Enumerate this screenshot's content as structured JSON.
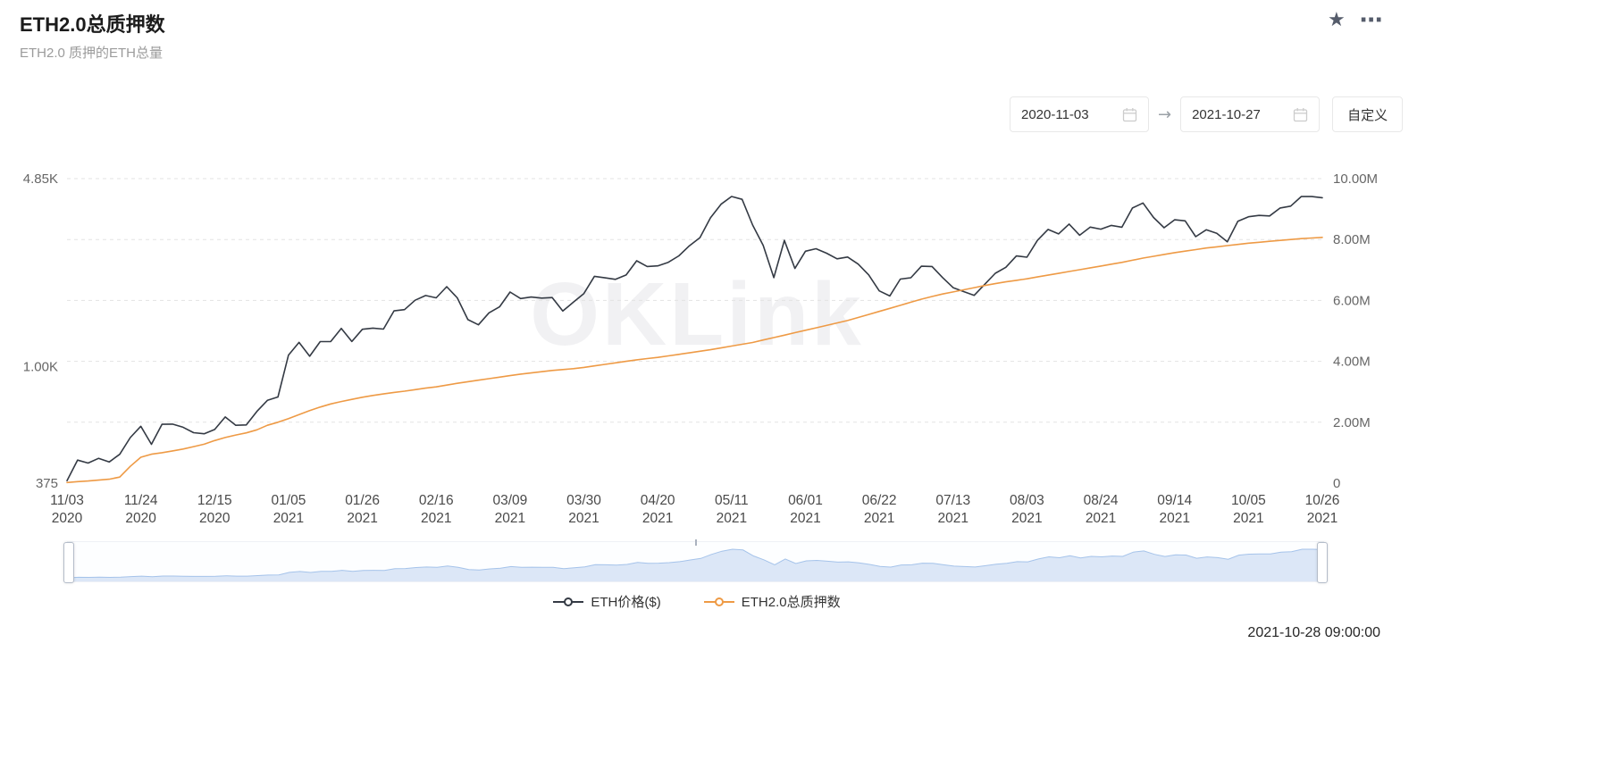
{
  "header": {
    "title": "ETH2.0总质押数",
    "subtitle": "ETH2.0 质押的ETH总量"
  },
  "icons": {
    "star": "★",
    "ellipsis": "⋯"
  },
  "controls": {
    "start_date": "2020-11-03",
    "end_date": "2021-10-27",
    "arrow": "→",
    "custom_label": "自定义"
  },
  "watermark": "OKLink",
  "footer": {
    "timestamp": "2021-10-28 09:00:00"
  },
  "chart_data": {
    "type": "line",
    "title": "ETH2.0总质押数",
    "legend_position": "bottom",
    "grid": "horizontal dashed",
    "x_axis": {
      "tick_every": 7,
      "tick_labels": [
        [
          "11/03",
          "2020"
        ],
        [
          "11/24",
          "2020"
        ],
        [
          "12/15",
          "2020"
        ],
        [
          "01/05",
          "2021"
        ],
        [
          "01/26",
          "2021"
        ],
        [
          "02/16",
          "2021"
        ],
        [
          "03/09",
          "2021"
        ],
        [
          "03/30",
          "2021"
        ],
        [
          "04/20",
          "2021"
        ],
        [
          "05/11",
          "2021"
        ],
        [
          "06/01",
          "2021"
        ],
        [
          "06/22",
          "2021"
        ],
        [
          "07/13",
          "2021"
        ],
        [
          "08/03",
          "2021"
        ],
        [
          "08/24",
          "2021"
        ],
        [
          "09/14",
          "2021"
        ],
        [
          "10/05",
          "2021"
        ],
        [
          "10/26",
          "2021"
        ]
      ]
    },
    "y_left": {
      "scale": "log",
      "min": 375,
      "max": 4850,
      "ticks": [
        {
          "value": 4850,
          "label": "4.85K"
        },
        {
          "value": 1000,
          "label": "1.00K"
        },
        {
          "value": 375,
          "label": "375"
        }
      ]
    },
    "y_right": {
      "scale": "linear",
      "min": 0,
      "max": 10,
      "values_in": "millions of ETH",
      "ticks": [
        {
          "value": 10,
          "label": "10.00M"
        },
        {
          "value": 8,
          "label": "8.00M"
        },
        {
          "value": 6,
          "label": "6.00M"
        },
        {
          "value": 4,
          "label": "4.00M"
        },
        {
          "value": 2,
          "label": "2.00M"
        },
        {
          "value": 0,
          "label": "0"
        }
      ]
    },
    "dates": [
      "2020-11-03",
      "2020-11-06",
      "2020-11-09",
      "2020-11-12",
      "2020-11-15",
      "2020-11-18",
      "2020-11-21",
      "2020-11-24",
      "2020-11-27",
      "2020-11-30",
      "2020-12-03",
      "2020-12-06",
      "2020-12-09",
      "2020-12-12",
      "2020-12-15",
      "2020-12-18",
      "2020-12-21",
      "2020-12-24",
      "2020-12-27",
      "2020-12-30",
      "2021-01-02",
      "2021-01-05",
      "2021-01-08",
      "2021-01-11",
      "2021-01-14",
      "2021-01-17",
      "2021-01-20",
      "2021-01-23",
      "2021-01-26",
      "2021-01-29",
      "2021-02-01",
      "2021-02-04",
      "2021-02-07",
      "2021-02-10",
      "2021-02-13",
      "2021-02-16",
      "2021-02-19",
      "2021-02-22",
      "2021-02-25",
      "2021-02-28",
      "2021-03-03",
      "2021-03-06",
      "2021-03-09",
      "2021-03-12",
      "2021-03-15",
      "2021-03-18",
      "2021-03-21",
      "2021-03-24",
      "2021-03-27",
      "2021-03-30",
      "2021-04-02",
      "2021-04-05",
      "2021-04-08",
      "2021-04-11",
      "2021-04-14",
      "2021-04-17",
      "2021-04-20",
      "2021-04-23",
      "2021-04-26",
      "2021-04-29",
      "2021-05-02",
      "2021-05-05",
      "2021-05-08",
      "2021-05-11",
      "2021-05-14",
      "2021-05-17",
      "2021-05-20",
      "2021-05-23",
      "2021-05-26",
      "2021-05-29",
      "2021-06-01",
      "2021-06-04",
      "2021-06-07",
      "2021-06-10",
      "2021-06-13",
      "2021-06-16",
      "2021-06-19",
      "2021-06-22",
      "2021-06-25",
      "2021-06-28",
      "2021-07-01",
      "2021-07-04",
      "2021-07-07",
      "2021-07-10",
      "2021-07-13",
      "2021-07-16",
      "2021-07-19",
      "2021-07-22",
      "2021-07-25",
      "2021-07-28",
      "2021-07-31",
      "2021-08-03",
      "2021-08-06",
      "2021-08-09",
      "2021-08-12",
      "2021-08-15",
      "2021-08-18",
      "2021-08-21",
      "2021-08-24",
      "2021-08-27",
      "2021-08-30",
      "2021-09-02",
      "2021-09-05",
      "2021-09-08",
      "2021-09-11",
      "2021-09-14",
      "2021-09-17",
      "2021-09-20",
      "2021-09-23",
      "2021-09-26",
      "2021-09-29",
      "2021-10-02",
      "2021-10-05",
      "2021-10-08",
      "2021-10-11",
      "2021-10-14",
      "2021-10-17",
      "2021-10-20",
      "2021-10-23",
      "2021-10-26"
    ],
    "series": [
      {
        "name": "ETH价格($)",
        "yaxis": "left",
        "color": "#343a44",
        "values": [
          383,
          455,
          444,
          462,
          448,
          478,
          550,
          605,
          520,
          615,
          616,
          600,
          573,
          568,
          589,
          654,
          610,
          612,
          685,
          752,
          774,
          1100,
          1224,
          1090,
          1232,
          1233,
          1377,
          1233,
          1367,
          1380,
          1369,
          1595,
          1612,
          1745,
          1816,
          1781,
          1956,
          1781,
          1482,
          1419,
          1570,
          1651,
          1870,
          1770,
          1792,
          1776,
          1784,
          1593,
          1716,
          1846,
          2133,
          2107,
          2080,
          2157,
          2432,
          2317,
          2330,
          2400,
          2533,
          2757,
          2952,
          3489,
          3910,
          4174,
          4075,
          3282,
          2769,
          2110,
          2884,
          2279,
          2634,
          2690,
          2592,
          2472,
          2509,
          2365,
          2160,
          1888,
          1809,
          2084,
          2108,
          2322,
          2317,
          2111,
          1940,
          1877,
          1818,
          1995,
          2189,
          2301,
          2532,
          2506,
          2888,
          3163,
          3048,
          3310,
          3013,
          3226,
          3172,
          3273,
          3224,
          3790,
          3952,
          3500,
          3209,
          3432,
          3400,
          2977,
          3155,
          3063,
          2850,
          3390,
          3520,
          3560,
          3545,
          3790,
          3850,
          4170,
          4172,
          4130
        ]
      },
      {
        "name": "ETH2.0总质押数",
        "yaxis": "right",
        "color": "#ee9a45",
        "unit": "million ETH",
        "values": [
          0.02,
          0.05,
          0.07,
          0.1,
          0.13,
          0.2,
          0.55,
          0.85,
          0.95,
          1.0,
          1.06,
          1.12,
          1.2,
          1.28,
          1.4,
          1.5,
          1.58,
          1.65,
          1.75,
          1.9,
          2.0,
          2.12,
          2.25,
          2.38,
          2.5,
          2.6,
          2.68,
          2.75,
          2.82,
          2.88,
          2.93,
          2.98,
          3.02,
          3.07,
          3.12,
          3.16,
          3.22,
          3.28,
          3.33,
          3.38,
          3.43,
          3.48,
          3.53,
          3.58,
          3.62,
          3.66,
          3.7,
          3.73,
          3.76,
          3.8,
          3.85,
          3.9,
          3.95,
          4.0,
          4.05,
          4.09,
          4.13,
          4.18,
          4.23,
          4.28,
          4.33,
          4.38,
          4.44,
          4.5,
          4.56,
          4.62,
          4.7,
          4.78,
          4.86,
          4.94,
          5.02,
          5.1,
          5.18,
          5.26,
          5.34,
          5.44,
          5.54,
          5.64,
          5.74,
          5.84,
          5.94,
          6.04,
          6.13,
          6.21,
          6.28,
          6.35,
          6.42,
          6.49,
          6.55,
          6.61,
          6.66,
          6.71,
          6.77,
          6.83,
          6.89,
          6.95,
          7.01,
          7.07,
          7.13,
          7.19,
          7.25,
          7.32,
          7.39,
          7.45,
          7.51,
          7.57,
          7.62,
          7.67,
          7.72,
          7.76,
          7.8,
          7.84,
          7.88,
          7.91,
          7.94,
          7.97,
          8.0,
          8.03,
          8.05,
          8.07
        ]
      }
    ],
    "colors": {
      "grid_line": "#e3e3e3",
      "brush_area_fill": "rgba(122,165,223,0.25)",
      "brush_area_stroke": "#a5c3ea"
    }
  }
}
